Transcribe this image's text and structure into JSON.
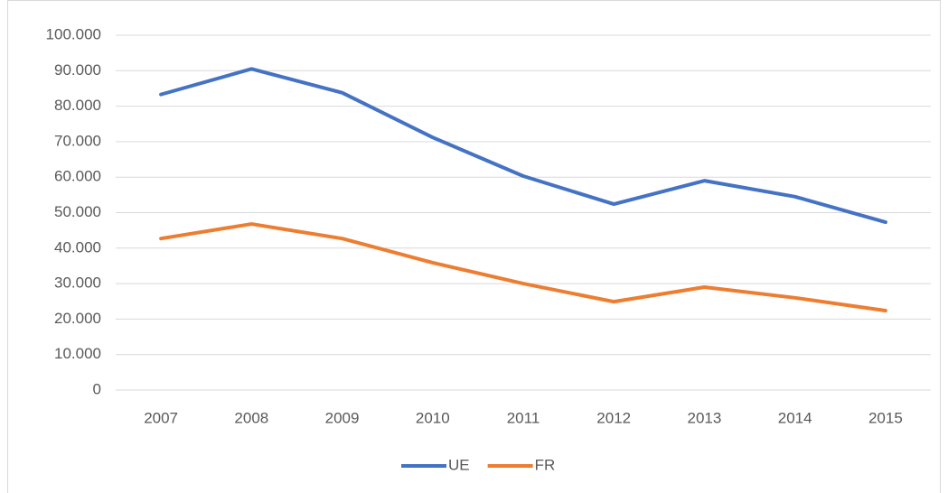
{
  "chart_data": {
    "type": "line",
    "categories": [
      "2007",
      "2008",
      "2009",
      "2010",
      "2011",
      "2012",
      "2013",
      "2014",
      "2015"
    ],
    "series": [
      {
        "name": "UE",
        "color": "#4472c4",
        "values": [
          83300,
          90500,
          83800,
          71200,
          60300,
          52400,
          59000,
          54500,
          47300
        ]
      },
      {
        "name": "FR",
        "color": "#ed7d31",
        "values": [
          42700,
          46800,
          42700,
          35900,
          30000,
          24900,
          29000,
          26000,
          22400
        ]
      }
    ],
    "ylim": [
      0,
      100000
    ],
    "yticks": [
      0,
      {
        "value": 10000,
        "label": "10.000"
      },
      {
        "value": 20000,
        "label": "20.000"
      },
      {
        "value": 30000,
        "label": "30.000"
      },
      {
        "value": 40000,
        "label": "40.000"
      },
      {
        "value": 50000,
        "label": "50.000"
      },
      {
        "value": 60000,
        "label": "60.000"
      },
      {
        "value": 70000,
        "label": "70.000"
      },
      {
        "value": 80000,
        "label": "80.000"
      },
      {
        "value": 90000,
        "label": "90.000"
      },
      {
        "value": 100000,
        "label": "100.000"
      }
    ],
    "grid": true,
    "legend": "bottom"
  }
}
